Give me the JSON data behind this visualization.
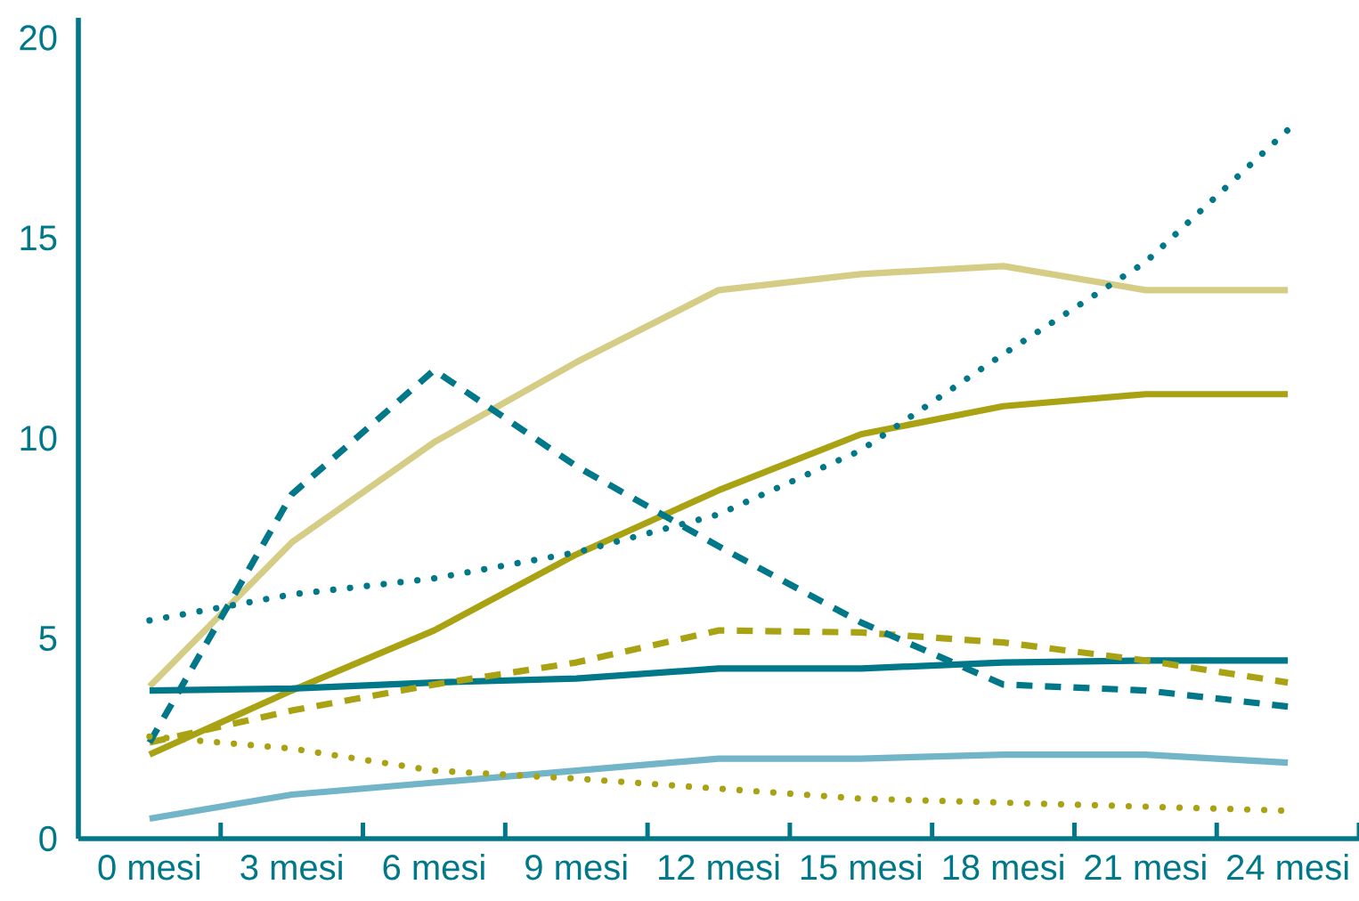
{
  "chart_data": {
    "type": "line",
    "categories": [
      "0 mesi",
      "3 mesi",
      "6 mesi",
      "9 mesi",
      "12 mesi",
      "15 mesi",
      "18 mesi",
      "21 mesi",
      "24 mesi"
    ],
    "ylim": [
      0,
      20.5
    ],
    "yticks": [
      0,
      5,
      10,
      15,
      20
    ],
    "series": [
      {
        "color": "#d5cd85",
        "line_style": "solid",
        "values": [
          3.8,
          7.4,
          9.9,
          11.9,
          13.7,
          14.1,
          14.3,
          13.7,
          13.7
        ]
      },
      {
        "color": "#72b5c8",
        "line_style": "solid",
        "values": [
          0.5,
          1.1,
          1.4,
          1.7,
          2.0,
          2.0,
          2.1,
          2.1,
          1.9
        ]
      },
      {
        "color": "#a9a314",
        "line_style": "solid",
        "values": [
          2.1,
          3.7,
          5.2,
          7.1,
          8.7,
          10.1,
          10.8,
          11.1,
          11.1
        ]
      },
      {
        "color": "#00788a",
        "line_style": "solid",
        "values": [
          3.7,
          3.75,
          3.9,
          4.0,
          4.25,
          4.25,
          4.4,
          4.45,
          4.45
        ]
      },
      {
        "color": "#a9a314",
        "line_style": "dashed",
        "values": [
          2.4,
          3.2,
          3.85,
          4.4,
          5.2,
          5.15,
          4.9,
          4.45,
          3.9
        ]
      },
      {
        "color": "#00788a",
        "line_style": "dashed",
        "values": [
          2.4,
          8.6,
          11.7,
          9.3,
          7.3,
          5.4,
          3.85,
          3.7,
          3.3
        ]
      },
      {
        "color": "#a9a314",
        "line_style": "dotted",
        "values": [
          2.55,
          2.25,
          1.7,
          1.5,
          1.25,
          1.0,
          0.9,
          0.8,
          0.7
        ]
      },
      {
        "color": "#00788a",
        "line_style": "dotted",
        "values": [
          5.45,
          6.1,
          6.5,
          7.15,
          8.1,
          9.7,
          12.1,
          14.4,
          17.7
        ]
      }
    ]
  }
}
